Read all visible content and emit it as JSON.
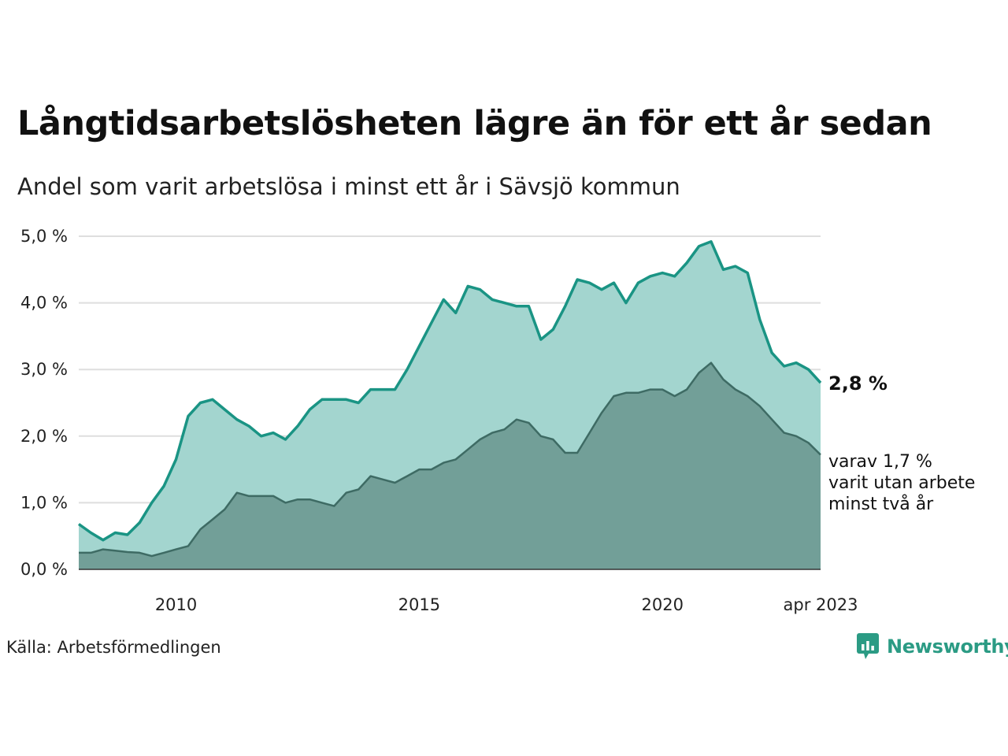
{
  "header": {
    "title": "Långtidsarbetslösheten lägre än för ett år sedan",
    "subtitle": "Andel som varit arbetslösa i minst ett år i Sävsjö kommun"
  },
  "footer": {
    "source": "Källa: Arbetsförmedlingen",
    "logo_text": "Newsworthy"
  },
  "colors": {
    "total_line": "#1a9484",
    "total_fill": "#a3d5cf",
    "long_line": "#3e6b64",
    "long_fill": "#729f98",
    "grid": "#dedede",
    "logo": "#2b9b84"
  },
  "chart_data": {
    "type": "area",
    "title": "Långtidsarbetslösheten lägre än för ett år sedan",
    "subtitle": "Andel som varit arbetslösa i minst ett år i Sävsjö kommun",
    "xlim": [
      "2008-01",
      "2023-04"
    ],
    "ylim": [
      0,
      5
    ],
    "y_ticks": [
      0,
      1,
      2,
      3,
      4,
      5
    ],
    "y_tick_labels": [
      "0,0 %",
      "1,0 %",
      "2,0 %",
      "3,0 %",
      "4,0 %",
      "5,0 %"
    ],
    "x_ticks": [
      {
        "date": "2010-01",
        "label": "2010"
      },
      {
        "date": "2015-01",
        "label": "2015"
      },
      {
        "date": "2020-01",
        "label": "2020"
      },
      {
        "date": "2023-04",
        "label": "apr 2023"
      }
    ],
    "grid": true,
    "end_label": "2,8 %",
    "note_lines": [
      "varav 1,7 %",
      "varit utan arbete",
      "minst två år"
    ],
    "series": [
      {
        "points": [
          [
            "2008-01",
            0.68
          ],
          [
            "2008-04",
            0.55
          ],
          [
            "2008-07",
            0.44
          ],
          [
            "2008-10",
            0.55
          ],
          [
            "2009-01",
            0.52
          ],
          [
            "2009-04",
            0.7
          ],
          [
            "2009-07",
            1.0
          ],
          [
            "2009-10",
            1.25
          ],
          [
            "2010-01",
            1.65
          ],
          [
            "2010-04",
            2.3
          ],
          [
            "2010-07",
            2.5
          ],
          [
            "2010-10",
            2.55
          ],
          [
            "2011-01",
            2.4
          ],
          [
            "2011-04",
            2.25
          ],
          [
            "2011-07",
            2.15
          ],
          [
            "2011-10",
            2.0
          ],
          [
            "2012-01",
            2.05
          ],
          [
            "2012-04",
            1.95
          ],
          [
            "2012-07",
            2.15
          ],
          [
            "2012-10",
            2.4
          ],
          [
            "2013-01",
            2.55
          ],
          [
            "2013-04",
            2.55
          ],
          [
            "2013-07",
            2.55
          ],
          [
            "2013-10",
            2.5
          ],
          [
            "2014-01",
            2.7
          ],
          [
            "2014-04",
            2.7
          ],
          [
            "2014-07",
            2.7
          ],
          [
            "2014-10",
            3.0
          ],
          [
            "2015-01",
            3.35
          ],
          [
            "2015-04",
            3.7
          ],
          [
            "2015-07",
            4.05
          ],
          [
            "2015-10",
            3.85
          ],
          [
            "2016-01",
            4.25
          ],
          [
            "2016-04",
            4.2
          ],
          [
            "2016-07",
            4.05
          ],
          [
            "2016-10",
            4.0
          ],
          [
            "2017-01",
            3.95
          ],
          [
            "2017-04",
            3.95
          ],
          [
            "2017-07",
            3.45
          ],
          [
            "2017-10",
            3.6
          ],
          [
            "2018-01",
            3.95
          ],
          [
            "2018-04",
            4.35
          ],
          [
            "2018-07",
            4.3
          ],
          [
            "2018-10",
            4.2
          ],
          [
            "2019-01",
            4.3
          ],
          [
            "2019-04",
            4.0
          ],
          [
            "2019-07",
            4.3
          ],
          [
            "2019-10",
            4.4
          ],
          [
            "2020-01",
            4.45
          ],
          [
            "2020-04",
            4.4
          ],
          [
            "2020-07",
            4.6
          ],
          [
            "2020-10",
            4.85
          ],
          [
            "2021-01",
            4.92
          ],
          [
            "2021-04",
            4.5
          ],
          [
            "2021-07",
            4.55
          ],
          [
            "2021-10",
            4.45
          ],
          [
            "2022-01",
            3.75
          ],
          [
            "2022-04",
            3.25
          ],
          [
            "2022-07",
            3.05
          ],
          [
            "2022-10",
            3.1
          ],
          [
            "2023-01",
            3.0
          ],
          [
            "2023-04",
            2.8
          ]
        ]
      },
      {
        "points": [
          [
            "2008-01",
            0.25
          ],
          [
            "2008-04",
            0.25
          ],
          [
            "2008-07",
            0.3
          ],
          [
            "2008-10",
            0.28
          ],
          [
            "2009-01",
            0.26
          ],
          [
            "2009-04",
            0.25
          ],
          [
            "2009-07",
            0.2
          ],
          [
            "2009-10",
            0.25
          ],
          [
            "2010-01",
            0.3
          ],
          [
            "2010-04",
            0.35
          ],
          [
            "2010-07",
            0.6
          ],
          [
            "2010-10",
            0.75
          ],
          [
            "2011-01",
            0.9
          ],
          [
            "2011-04",
            1.15
          ],
          [
            "2011-07",
            1.1
          ],
          [
            "2011-10",
            1.1
          ],
          [
            "2012-01",
            1.1
          ],
          [
            "2012-04",
            1.0
          ],
          [
            "2012-07",
            1.05
          ],
          [
            "2012-10",
            1.05
          ],
          [
            "2013-01",
            1.0
          ],
          [
            "2013-04",
            0.95
          ],
          [
            "2013-07",
            1.15
          ],
          [
            "2013-10",
            1.2
          ],
          [
            "2014-01",
            1.4
          ],
          [
            "2014-04",
            1.35
          ],
          [
            "2014-07",
            1.3
          ],
          [
            "2014-10",
            1.4
          ],
          [
            "2015-01",
            1.5
          ],
          [
            "2015-04",
            1.5
          ],
          [
            "2015-07",
            1.6
          ],
          [
            "2015-10",
            1.65
          ],
          [
            "2016-01",
            1.8
          ],
          [
            "2016-04",
            1.95
          ],
          [
            "2016-07",
            2.05
          ],
          [
            "2016-10",
            2.1
          ],
          [
            "2017-01",
            2.25
          ],
          [
            "2017-04",
            2.2
          ],
          [
            "2017-07",
            2.0
          ],
          [
            "2017-10",
            1.95
          ],
          [
            "2018-01",
            1.75
          ],
          [
            "2018-04",
            1.75
          ],
          [
            "2018-07",
            2.05
          ],
          [
            "2018-10",
            2.35
          ],
          [
            "2019-01",
            2.6
          ],
          [
            "2019-04",
            2.65
          ],
          [
            "2019-07",
            2.65
          ],
          [
            "2019-10",
            2.7
          ],
          [
            "2020-01",
            2.7
          ],
          [
            "2020-04",
            2.6
          ],
          [
            "2020-07",
            2.7
          ],
          [
            "2020-10",
            2.95
          ],
          [
            "2021-01",
            3.1
          ],
          [
            "2021-04",
            2.85
          ],
          [
            "2021-07",
            2.7
          ],
          [
            "2021-10",
            2.6
          ],
          [
            "2022-01",
            2.45
          ],
          [
            "2022-04",
            2.25
          ],
          [
            "2022-07",
            2.05
          ],
          [
            "2022-10",
            2.0
          ],
          [
            "2023-01",
            1.9
          ],
          [
            "2023-04",
            1.72
          ]
        ]
      }
    ]
  }
}
